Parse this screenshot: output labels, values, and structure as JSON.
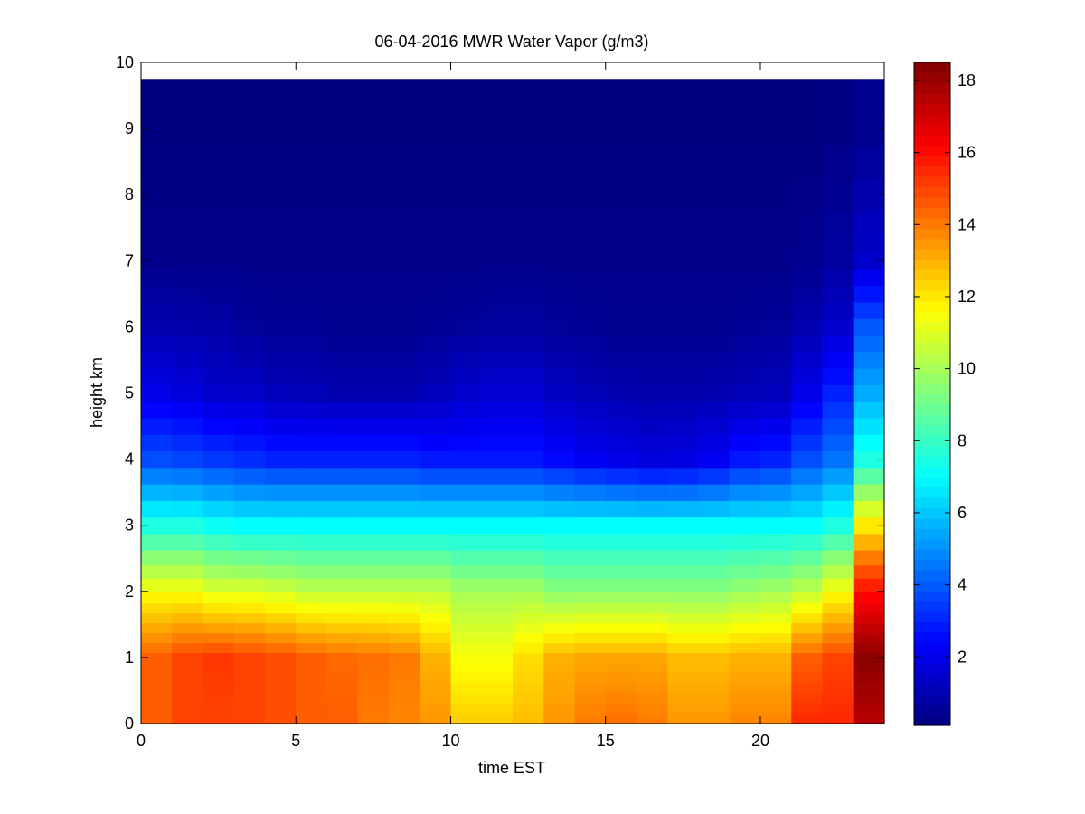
{
  "chart_data": {
    "type": "heatmap",
    "title": "06-04-2016 MWR Water Vapor (g/m3)",
    "xlabel": "time EST",
    "ylabel": "height km",
    "xlim": [
      0,
      24
    ],
    "ylim": [
      0,
      10
    ],
    "x_ticks": [
      0,
      5,
      10,
      15,
      20
    ],
    "y_ticks": [
      0,
      1,
      2,
      3,
      4,
      5,
      6,
      7,
      8,
      9,
      10
    ],
    "colorbar": {
      "range": [
        0.1,
        18.5
      ],
      "ticks": [
        2,
        4,
        6,
        8,
        10,
        12,
        14,
        16,
        18
      ],
      "colormap": "jet"
    },
    "time_hours": [
      0,
      1,
      2,
      3,
      4,
      5,
      6,
      7,
      8,
      9,
      10,
      11,
      12,
      13,
      14,
      15,
      16,
      17,
      18,
      19,
      20,
      21,
      22,
      23
    ],
    "height_km": [
      0.05,
      0.15,
      0.25,
      0.4,
      0.55,
      0.7,
      0.85,
      1.0,
      1.15,
      1.3,
      1.45,
      1.6,
      1.75,
      1.9,
      2.1,
      2.3,
      2.5,
      2.75,
      3.0,
      3.25,
      3.5,
      3.75,
      4.0,
      4.25,
      4.5,
      4.75,
      5.0,
      5.25,
      5.5,
      5.75,
      6.0,
      6.25,
      6.5,
      6.75,
      7.0,
      7.25,
      7.5,
      8.0,
      8.5,
      9.0,
      9.5
    ],
    "profiles": {
      "note": "",
      "surface": [
        14.5,
        15,
        15,
        15,
        14.8,
        14.5,
        14.5,
        14,
        13.8,
        13.5,
        12.5,
        12.5,
        12.8,
        13.5,
        14,
        14.2,
        14,
        13.5,
        13.5,
        13.8,
        13.8,
        15.5,
        15.5,
        17.5
      ],
      "at_1km": [
        14.5,
        15,
        15.2,
        15,
        14.8,
        14.5,
        14.3,
        14.2,
        14,
        13,
        11.5,
        11.5,
        12.2,
        13,
        13.2,
        13.2,
        13.2,
        12.8,
        12.8,
        13,
        13,
        14.5,
        15,
        18.3
      ],
      "at_2km": [
        11.5,
        11.5,
        11,
        11,
        10.8,
        10.5,
        10.5,
        10.5,
        10.5,
        10.5,
        10,
        10,
        10,
        9.5,
        9.5,
        9.5,
        9.5,
        9.5,
        9.5,
        9.8,
        10,
        10.5,
        11.5,
        16
      ],
      "at_3km": [
        7.5,
        7.5,
        7.2,
        7,
        7,
        7,
        7,
        7,
        7,
        7,
        7,
        7,
        7,
        7,
        7,
        7,
        7,
        7,
        7,
        7,
        7,
        7,
        7.5,
        12
      ],
      "at_4km": [
        3.8,
        3.6,
        3.4,
        3.2,
        3,
        3,
        3,
        3,
        3,
        2.8,
        2.8,
        2.8,
        2.8,
        2.5,
        2.2,
        2,
        1.8,
        1.9,
        2.2,
        2.8,
        3,
        3.8,
        4.5,
        7.5
      ],
      "at_5km": [
        2,
        1.8,
        1.5,
        1.4,
        1.2,
        1.1,
        1,
        1,
        1,
        1.2,
        1.5,
        1.6,
        1.6,
        1.3,
        1.1,
        1,
        0.9,
        0.9,
        1,
        1.1,
        1.2,
        2,
        3,
        5.5
      ],
      "at_6km": [
        1,
        0.9,
        0.8,
        0.6,
        0.5,
        0.5,
        0.4,
        0.4,
        0.4,
        0.5,
        0.6,
        0.7,
        0.7,
        0.6,
        0.5,
        0.4,
        0.4,
        0.4,
        0.4,
        0.5,
        0.6,
        1,
        1.5,
        4
      ],
      "at_7km": [
        0.3,
        0.3,
        0.3,
        0.3,
        0.3,
        0.3,
        0.3,
        0.3,
        0.3,
        0.3,
        0.3,
        0.3,
        0.3,
        0.3,
        0.3,
        0.3,
        0.3,
        0.3,
        0.3,
        0.3,
        0.3,
        0.4,
        0.7,
        1.5
      ],
      "at_9km": [
        0.1,
        0.1,
        0.1,
        0.1,
        0.1,
        0.1,
        0.1,
        0.1,
        0.1,
        0.1,
        0.1,
        0.1,
        0.1,
        0.1,
        0.1,
        0.1,
        0.1,
        0.1,
        0.1,
        0.1,
        0.1,
        0.1,
        0.2,
        0.4
      ]
    }
  }
}
